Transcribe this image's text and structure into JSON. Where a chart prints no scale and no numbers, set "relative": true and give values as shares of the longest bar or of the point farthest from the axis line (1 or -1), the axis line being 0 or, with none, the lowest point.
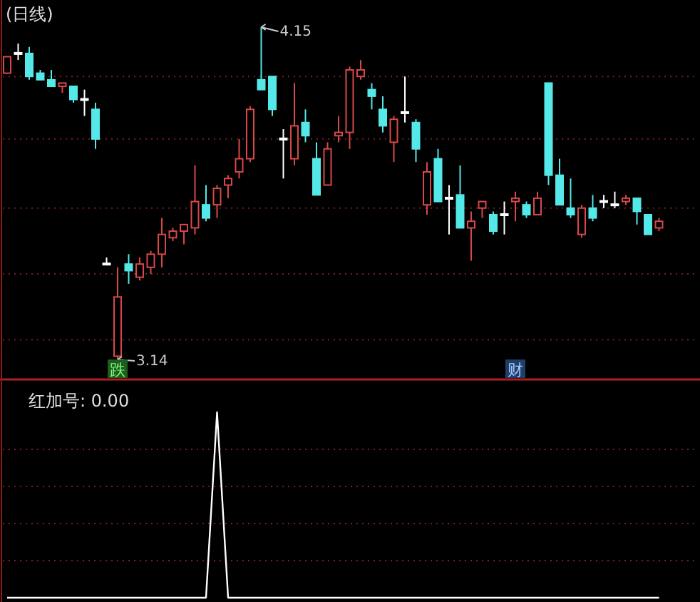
{
  "chart_data": [
    {
      "type": "candlestick",
      "title": "(日线)",
      "grid": "y",
      "yticks": [
        {
          "value": 4.0,
          "label": null
        },
        {
          "value": 3.81,
          "label": null
        },
        {
          "value": 3.6,
          "label": null
        },
        {
          "value": 3.4,
          "label": null
        },
        {
          "value": 3.2,
          "label": null
        }
      ],
      "categories": [
        null,
        null,
        null,
        null,
        null,
        null,
        null,
        null,
        null,
        null,
        null,
        null,
        null,
        null,
        null,
        null,
        null,
        null,
        null,
        null,
        null,
        null,
        null,
        null,
        null,
        null,
        null,
        null,
        null,
        null,
        null,
        null,
        null,
        null,
        null,
        null,
        null,
        null,
        null,
        null,
        null,
        null,
        null,
        null,
        null,
        null,
        null,
        null,
        null,
        null,
        null,
        null,
        null,
        null,
        null,
        null,
        null,
        null,
        null,
        null
      ],
      "ohlc": [
        [
          4.01,
          4.06,
          4.01,
          4.06
        ],
        [
          4.07,
          4.1,
          4.05,
          4.07
        ],
        [
          4.07,
          4.09,
          3.99,
          4.0
        ],
        [
          4.01,
          4.02,
          3.99,
          3.99
        ],
        [
          3.99,
          4.02,
          3.97,
          3.97
        ],
        [
          3.97,
          3.98,
          3.95,
          3.98
        ],
        [
          3.97,
          3.97,
          3.92,
          3.93
        ],
        [
          3.93,
          3.96,
          3.88,
          3.93
        ],
        [
          3.9,
          3.92,
          3.78,
          3.81
        ],
        [
          3.43,
          3.45,
          3.43,
          3.43
        ],
        [
          3.15,
          3.42,
          3.14,
          3.33
        ],
        [
          3.43,
          3.46,
          3.37,
          3.41
        ],
        [
          3.39,
          3.45,
          3.38,
          3.43
        ],
        [
          3.42,
          3.47,
          3.4,
          3.46
        ],
        [
          3.46,
          3.57,
          3.42,
          3.52
        ],
        [
          3.51,
          3.54,
          3.5,
          3.53
        ],
        [
          3.53,
          3.55,
          3.49,
          3.55
        ],
        [
          3.54,
          3.73,
          3.52,
          3.62
        ],
        [
          3.61,
          3.67,
          3.56,
          3.57
        ],
        [
          3.61,
          3.67,
          3.57,
          3.66
        ],
        [
          3.67,
          3.7,
          3.63,
          3.69
        ],
        [
          3.71,
          3.81,
          3.69,
          3.75
        ],
        [
          3.75,
          3.91,
          3.74,
          3.9
        ],
        [
          3.99,
          4.15,
          3.96,
          3.96
        ],
        [
          4.0,
          4.0,
          3.88,
          3.9
        ],
        [
          3.81,
          3.84,
          3.69,
          3.81
        ],
        [
          3.75,
          3.98,
          3.73,
          3.85
        ],
        [
          3.86,
          3.9,
          3.8,
          3.82
        ],
        [
          3.75,
          3.8,
          3.64,
          3.64
        ],
        [
          3.67,
          3.8,
          3.67,
          3.78
        ],
        [
          3.82,
          3.88,
          3.8,
          3.83
        ],
        [
          3.83,
          4.03,
          3.78,
          4.02
        ],
        [
          4.0,
          4.05,
          3.99,
          4.02
        ],
        [
          3.96,
          3.98,
          3.9,
          3.94
        ],
        [
          3.9,
          3.94,
          3.83,
          3.85
        ],
        [
          3.8,
          3.88,
          3.74,
          3.87
        ],
        [
          3.89,
          4.0,
          3.86,
          3.89
        ],
        [
          3.86,
          3.87,
          3.74,
          3.78
        ],
        [
          3.61,
          3.74,
          3.58,
          3.71
        ],
        [
          3.75,
          3.78,
          3.62,
          3.62
        ],
        [
          3.63,
          3.67,
          3.52,
          3.63
        ],
        [
          3.64,
          3.73,
          3.54,
          3.54
        ],
        [
          3.54,
          3.59,
          3.44,
          3.56
        ],
        [
          3.6,
          3.62,
          3.57,
          3.62
        ],
        [
          3.58,
          3.59,
          3.52,
          3.53
        ],
        [
          3.58,
          3.62,
          3.52,
          3.58
        ],
        [
          3.62,
          3.65,
          3.56,
          3.63
        ],
        [
          3.61,
          3.62,
          3.57,
          3.58
        ],
        [
          3.58,
          3.65,
          3.58,
          3.63
        ],
        [
          3.98,
          3.98,
          3.67,
          3.7
        ],
        [
          3.7,
          3.75,
          3.61,
          3.61
        ],
        [
          3.6,
          3.69,
          3.57,
          3.58
        ],
        [
          3.52,
          3.61,
          3.51,
          3.6
        ],
        [
          3.6,
          3.64,
          3.56,
          3.57
        ],
        [
          3.62,
          3.64,
          3.6,
          3.62
        ],
        [
          3.61,
          3.65,
          3.6,
          3.61
        ],
        [
          3.62,
          3.64,
          3.61,
          3.63
        ],
        [
          3.63,
          3.63,
          3.55,
          3.59
        ],
        [
          3.58,
          3.58,
          3.52,
          3.52
        ],
        [
          3.54,
          3.57,
          3.53,
          3.56
        ]
      ],
      "colors": [
        "#d84848",
        "#ffffff",
        "#54e8e8",
        "#54e8e8",
        "#54e8e8",
        "#d84848",
        "#54e8e8",
        "#ffffff",
        "#54e8e8",
        "#ffffff",
        "#d84848",
        "#54e8e8",
        "#d84848",
        "#d84848",
        "#d84848",
        "#d84848",
        "#d84848",
        "#d84848",
        "#54e8e8",
        "#d84848",
        "#d84848",
        "#d84848",
        "#d84848",
        "#54e8e8",
        "#54e8e8",
        "#ffffff",
        "#d84848",
        "#54e8e8",
        "#54e8e8",
        "#d84848",
        "#d84848",
        "#d84848",
        "#d84848",
        "#54e8e8",
        "#54e8e8",
        "#d84848",
        "#ffffff",
        "#54e8e8",
        "#d84848",
        "#54e8e8",
        "#ffffff",
        "#54e8e8",
        "#d84848",
        "#d84848",
        "#54e8e8",
        "#ffffff",
        "#d84848",
        "#54e8e8",
        "#d84848",
        "#54e8e8",
        "#54e8e8",
        "#54e8e8",
        "#d84848",
        "#54e8e8",
        "#ffffff",
        "#ffffff",
        "#d84848",
        "#54e8e8",
        "#54e8e8",
        "#d84848"
      ],
      "annotations": [
        "4.15",
        "3.14",
        "跌",
        "财"
      ]
    },
    {
      "type": "line",
      "title": "红加号: 0.00",
      "relative": true,
      "ref_lines": [
        {
          "axis": "y",
          "value": 0.8,
          "color": "#7a1e1e",
          "line_style": "dotted"
        },
        {
          "axis": "y",
          "value": 0.6,
          "color": "#7a1e1e",
          "line_style": "dotted"
        },
        {
          "axis": "y",
          "value": 0.4,
          "color": "#7a1e1e",
          "line_style": "dotted"
        },
        {
          "axis": "y",
          "value": 0.2,
          "color": "#7a1e1e",
          "line_style": "dotted"
        }
      ],
      "categories": [
        null,
        null,
        null,
        null,
        null,
        null,
        null,
        null,
        null,
        null,
        null,
        null,
        null,
        null,
        null,
        null,
        null,
        null,
        null,
        null,
        null,
        null,
        null,
        null,
        null,
        null,
        null,
        null,
        null,
        null,
        null,
        null,
        null,
        null,
        null,
        null,
        null,
        null,
        null,
        null,
        null,
        null,
        null,
        null,
        null,
        null,
        null,
        null,
        null,
        null,
        null,
        null,
        null,
        null,
        null,
        null,
        null,
        null,
        null,
        null
      ],
      "series": [
        {
          "color": "#ffffff",
          "values": [
            0,
            0,
            0,
            0,
            0,
            0,
            0,
            0,
            0,
            0,
            0,
            0,
            0,
            0,
            0,
            0,
            0,
            0,
            0,
            1,
            0,
            0,
            0,
            0,
            0,
            0,
            0,
            0,
            0,
            0,
            0,
            0,
            0,
            0,
            0,
            0,
            0,
            0,
            0,
            0,
            0,
            0,
            0,
            0,
            0,
            0,
            0,
            0,
            0,
            0,
            0,
            0,
            0,
            0,
            0,
            0,
            0,
            0,
            0,
            0
          ]
        }
      ]
    }
  ]
}
